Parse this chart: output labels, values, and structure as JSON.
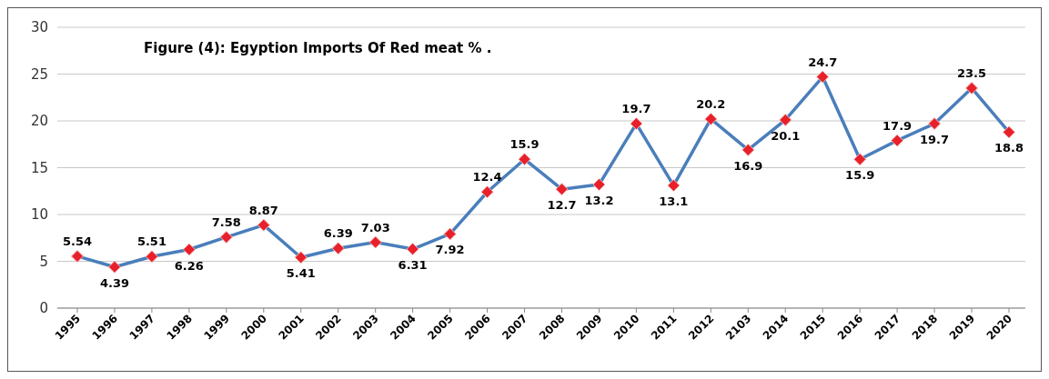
{
  "chart_data": {
    "type": "line",
    "title": "Figure (4): Egyption Imports Of Red meat % .",
    "categories": [
      "1995",
      "1996",
      "1997",
      "1998",
      "1999",
      "2000",
      "2001",
      "2002",
      "2003",
      "2004",
      "2005",
      "2006",
      "2007",
      "2008",
      "2009",
      "2010",
      "2011",
      "2012",
      "2103",
      "2014",
      "2015",
      "2016",
      "2017",
      "2018",
      "2019",
      "2020"
    ],
    "series": [
      {
        "color": "#4a7ebb",
        "values": [
          5.54,
          4.39,
          5.51,
          6.26,
          7.58,
          8.87,
          5.41,
          6.39,
          7.03,
          6.31,
          7.92,
          12.4,
          15.9,
          12.7,
          13.2,
          19.7,
          13.1,
          20.2,
          16.9,
          20.1,
          24.7,
          15.9,
          17.9,
          19.7,
          23.5,
          18.8
        ]
      }
    ],
    "ylim": [
      0,
      30
    ],
    "yticks": [
      0,
      5,
      10,
      15,
      20,
      25,
      30
    ],
    "grid": "y",
    "marker": "diamond",
    "line_style": "solid",
    "data_labels": true
  }
}
